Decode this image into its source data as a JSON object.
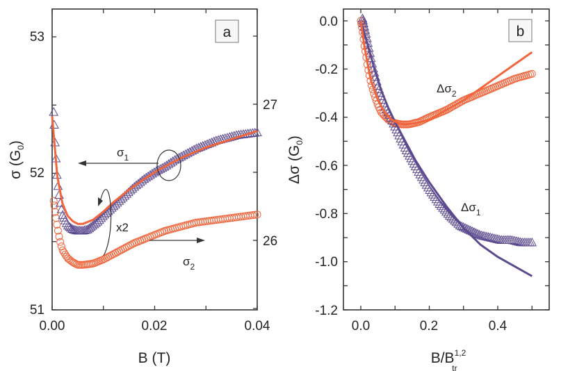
{
  "colors": {
    "orange": "#f0653c",
    "purple": "#5b4a8e",
    "axis": "#333333"
  },
  "chart_data": [
    {
      "type": "scatter",
      "panel_label": "a",
      "xlabel": "B (T)",
      "ylabel": "σ (G0)",
      "ylabel_main": "σ (G",
      "ylabel_sub": "0",
      "ylabel_close": ")",
      "xlim": [
        0,
        0.04
      ],
      "ylim_left": [
        51,
        53.1
      ],
      "ylim_right": [
        25.5,
        27.6
      ],
      "x_ticks": [
        "0.00",
        "0.02",
        "0.04"
      ],
      "y_ticks_left": [
        "51",
        "52",
        "53"
      ],
      "y_ticks_right": [
        "26",
        "27"
      ],
      "annotations": {
        "sigma1": "σ",
        "sigma1_sub": "1",
        "sigma2": "σ",
        "sigma2_sub": "2",
        "x2": "x2"
      },
      "series": [
        {
          "marker": "triangle",
          "axis": "left",
          "color": "purple",
          "x": [
            0.0003,
            0.0006,
            0.001,
            0.0015,
            0.002,
            0.003,
            0.004,
            0.005,
            0.006,
            0.007,
            0.008,
            0.009,
            0.01,
            0.012,
            0.014,
            0.016,
            0.018,
            0.02,
            0.022,
            0.024,
            0.026,
            0.028,
            0.03,
            0.032,
            0.034,
            0.036,
            0.038,
            0.04
          ],
          "y": [
            52.45,
            52.2,
            51.95,
            51.8,
            51.7,
            51.62,
            51.59,
            51.58,
            51.58,
            51.59,
            51.62,
            51.65,
            51.69,
            51.76,
            51.83,
            51.9,
            51.96,
            52.01,
            52.05,
            52.1,
            52.14,
            52.18,
            52.21,
            52.24,
            52.26,
            52.28,
            52.29,
            52.3
          ]
        },
        {
          "marker": "line",
          "axis": "left",
          "color": "orange",
          "x": [
            0,
            0.0005,
            0.001,
            0.002,
            0.003,
            0.004,
            0.005,
            0.006,
            0.008,
            0.01,
            0.012,
            0.015,
            0.018,
            0.021,
            0.025,
            0.03,
            0.035,
            0.04
          ],
          "y": [
            52.42,
            52.2,
            51.98,
            51.78,
            51.69,
            51.65,
            51.63,
            51.63,
            51.66,
            51.72,
            51.79,
            51.88,
            51.96,
            52.03,
            52.11,
            52.19,
            52.25,
            52.31
          ]
        },
        {
          "marker": "circle",
          "axis": "right",
          "color": "orange",
          "x": [
            0.0003,
            0.0006,
            0.001,
            0.0015,
            0.002,
            0.003,
            0.004,
            0.005,
            0.006,
            0.008,
            0.01,
            0.012,
            0.014,
            0.016,
            0.018,
            0.02,
            0.022,
            0.024,
            0.026,
            0.028,
            0.03,
            0.032,
            0.034,
            0.036,
            0.038,
            0.04
          ],
          "y": [
            26.29,
            26.2,
            26.1,
            26.0,
            25.93,
            25.87,
            25.84,
            25.82,
            25.82,
            25.83,
            25.86,
            25.9,
            25.94,
            25.98,
            26.01,
            26.04,
            26.07,
            26.09,
            26.11,
            26.13,
            26.14,
            26.15,
            26.16,
            26.17,
            26.18,
            26.19
          ]
        }
      ]
    },
    {
      "type": "scatter",
      "panel_label": "b",
      "xlabel": "B/B",
      "xlabel_sup": "1,2",
      "xlabel_sub": "tr",
      "ylabel": "Δσ (G0)",
      "ylabel_main": "Δσ (G",
      "ylabel_sub": "0",
      "ylabel_close": ")",
      "xlim": [
        -0.05,
        0.55
      ],
      "ylim": [
        -1.2,
        0.05
      ],
      "x_ticks": [
        "0.0",
        "0.2",
        "0.4"
      ],
      "y_ticks": [
        "0.0",
        "-0.2",
        "-0.4",
        "-0.6",
        "-0.8",
        "-1.0",
        "-1.2"
      ],
      "annotations": {
        "dsigma2": "Δσ",
        "dsigma2_sub": "2",
        "dsigma1": "Δσ",
        "dsigma1_sub": "1"
      },
      "series": [
        {
          "marker": "triangle",
          "color": "purple",
          "x": [
            0.005,
            0.015,
            0.025,
            0.035,
            0.05,
            0.07,
            0.09,
            0.11,
            0.13,
            0.15,
            0.17,
            0.2,
            0.23,
            0.26,
            0.29,
            0.32,
            0.35,
            0.38,
            0.41,
            0.44,
            0.47,
            0.5
          ],
          "y": [
            0.01,
            -0.05,
            -0.12,
            -0.19,
            -0.27,
            -0.35,
            -0.41,
            -0.47,
            -0.53,
            -0.58,
            -0.63,
            -0.7,
            -0.76,
            -0.81,
            -0.85,
            -0.87,
            -0.89,
            -0.9,
            -0.91,
            -0.91,
            -0.92,
            -0.92
          ]
        },
        {
          "marker": "line",
          "color": "purple",
          "x": [
            0,
            0.02,
            0.04,
            0.06,
            0.08,
            0.1,
            0.13,
            0.16,
            0.2,
            0.25,
            0.3,
            0.35,
            0.4,
            0.45,
            0.5
          ],
          "y": [
            0,
            -0.1,
            -0.2,
            -0.29,
            -0.36,
            -0.42,
            -0.5,
            -0.58,
            -0.67,
            -0.77,
            -0.86,
            -0.93,
            -0.98,
            -1.02,
            -1.06
          ]
        },
        {
          "marker": "circle",
          "color": "orange",
          "x": [
            0,
            0.005,
            0.01,
            0.015,
            0.02,
            0.03,
            0.04,
            0.05,
            0.06,
            0.08,
            0.1,
            0.12,
            0.14,
            0.17,
            0.2,
            0.25,
            0.3,
            0.35,
            0.4,
            0.45,
            0.5
          ],
          "y": [
            0,
            -0.04,
            -0.1,
            -0.14,
            -0.19,
            -0.26,
            -0.31,
            -0.35,
            -0.38,
            -0.41,
            -0.425,
            -0.43,
            -0.43,
            -0.42,
            -0.4,
            -0.37,
            -0.33,
            -0.3,
            -0.27,
            -0.24,
            -0.22
          ]
        },
        {
          "marker": "line",
          "color": "orange",
          "x": [
            0,
            0.01,
            0.02,
            0.03,
            0.05,
            0.07,
            0.09,
            0.11,
            0.13,
            0.16,
            0.2,
            0.25,
            0.3,
            0.35,
            0.4,
            0.45,
            0.5
          ],
          "y": [
            0,
            -0.1,
            -0.18,
            -0.25,
            -0.33,
            -0.38,
            -0.41,
            -0.425,
            -0.43,
            -0.425,
            -0.41,
            -0.37,
            -0.33,
            -0.28,
            -0.23,
            -0.18,
            -0.13
          ]
        }
      ]
    }
  ]
}
